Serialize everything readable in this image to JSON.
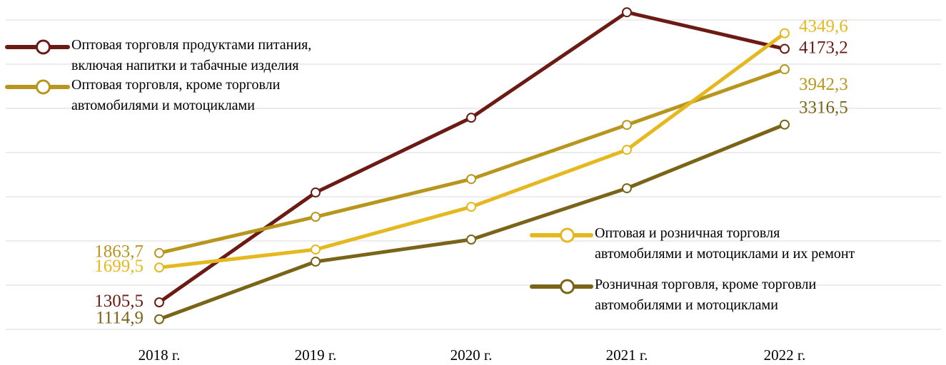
{
  "chart_data": {
    "type": "line",
    "categories": [
      "2018 г.",
      "2019 г.",
      "2020 г.",
      "2021 г.",
      "2022 г."
    ],
    "series": [
      {
        "name": "Оптовая торговля продуктами питания,\nвключая напитки и табачные изделия",
        "color": "#6b1a14",
        "values": [
          1305.5,
          2548,
          3394,
          4587,
          4173.2
        ],
        "value_labels": [
          "1305,5",
          null,
          null,
          null,
          "4173,2"
        ]
      },
      {
        "name": "Оптовая торговля, кроме торговли\nавтомобилями и мотоциклами",
        "color": "#b8961e",
        "values": [
          1863.7,
          2273,
          2700,
          3313,
          3942.3
        ],
        "value_labels": [
          "1863,7",
          null,
          null,
          null,
          "3942,3"
        ]
      },
      {
        "name": "Оптовая и розничная торговля\nавтомобилями и мотоциклами и их ремонт",
        "color": "#e6b820",
        "values": [
          1699.5,
          1903,
          2386,
          3031,
          4349.6
        ],
        "value_labels": [
          "1699,5",
          null,
          null,
          null,
          "4349,6"
        ]
      },
      {
        "name": "Розничная торговля, кроме торговли\nавтомобилями и мотоциклами",
        "color": "#7a6418",
        "values": [
          1114.9,
          1766,
          2016,
          2596,
          3316.5
        ],
        "value_labels": [
          "1114,9",
          null,
          null,
          null,
          "3316,5"
        ]
      }
    ],
    "ylim": [
      900,
      4600
    ],
    "yticks": [
      1000,
      1500,
      2000,
      2500,
      3000,
      3500,
      4000,
      4500
    ],
    "grid": true,
    "show_ytick_labels": false
  }
}
